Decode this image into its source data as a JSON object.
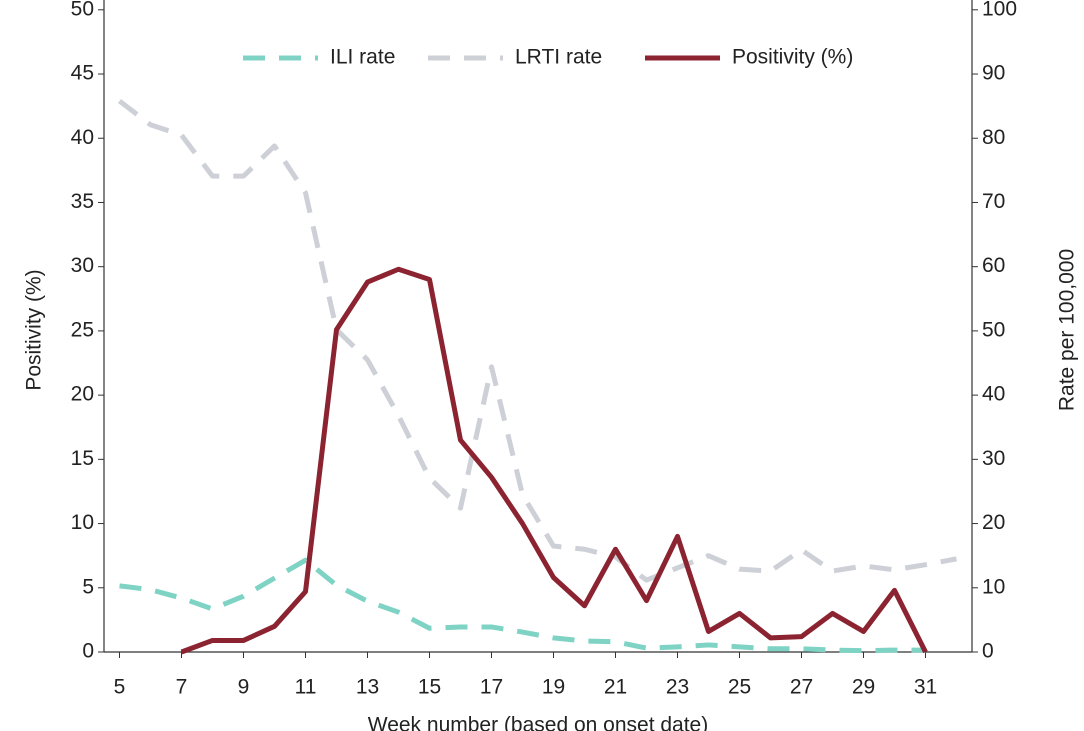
{
  "chart_data": {
    "type": "line",
    "x_label": "Week number (based on onset date)",
    "y_label": "Positivity (%)",
    "y2_label": "Rate per 100,000",
    "x": [
      5,
      6,
      7,
      8,
      9,
      10,
      11,
      12,
      13,
      14,
      15,
      16,
      17,
      18,
      19,
      20,
      21,
      22,
      23,
      24,
      25,
      26,
      27,
      28,
      29,
      30,
      31,
      32
    ],
    "xlim": [
      4.5,
      32.5
    ],
    "xticks": [
      5,
      7,
      9,
      11,
      13,
      15,
      17,
      19,
      21,
      23,
      25,
      27,
      29,
      31
    ],
    "ylim": [
      0,
      50
    ],
    "yticks": [
      0,
      5,
      10,
      15,
      20,
      25,
      30,
      35,
      40,
      45,
      50
    ],
    "y2lim": [
      0,
      100
    ],
    "y2ticks": [
      0,
      10,
      20,
      30,
      40,
      50,
      60,
      70,
      80,
      90,
      100
    ],
    "legend": "top",
    "series": [
      {
        "name": "ILI rate",
        "color": "#7fd3c4",
        "line_style": "dashed",
        "axis": "y2",
        "values": [
          10.3,
          9.7,
          8.4,
          6.7,
          8.7,
          11.5,
          14.3,
          10.4,
          7.9,
          6.2,
          3.7,
          3.9,
          3.9,
          3.1,
          2.2,
          1.7,
          1.6,
          0.6,
          0.8,
          1.1,
          0.8,
          0.5,
          0.5,
          0.3,
          0.2,
          0.3,
          0.3,
          null
        ]
      },
      {
        "name": "LRTI rate",
        "color": "#cdd0d6",
        "line_style": "dashed",
        "axis": "y2",
        "values": [
          85.8,
          82.1,
          80.5,
          74.1,
          74.1,
          78.8,
          71.5,
          50.2,
          45.5,
          36.8,
          27.1,
          22.4,
          44.4,
          24.5,
          16.5,
          16.0,
          14.8,
          11.2,
          13.1,
          15.0,
          12.9,
          12.6,
          15.9,
          12.6,
          13.4,
          12.8,
          13.6,
          14.5
        ]
      },
      {
        "name": "Positivity (%)",
        "color": "#8b2331",
        "line_style": "solid",
        "values": [
          null,
          null,
          0,
          0.9,
          0.9,
          2.0,
          4.7,
          25.1,
          28.8,
          29.8,
          29.0,
          16.5,
          13.6,
          10.0,
          5.8,
          3.6,
          8.0,
          4.0,
          9.0,
          1.6,
          3.0,
          1.1,
          1.2,
          3.0,
          1.6,
          4.8,
          0,
          null
        ]
      }
    ]
  }
}
